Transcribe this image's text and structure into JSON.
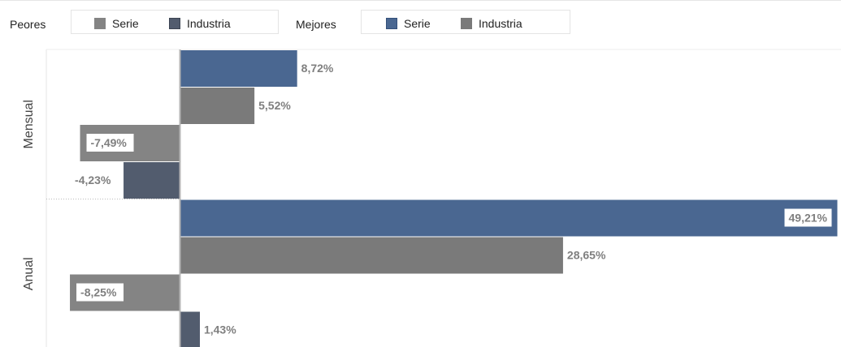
{
  "legend": {
    "worst": {
      "title": "Peores",
      "items": [
        {
          "label": "Serie",
          "color": "#848484"
        },
        {
          "label": "Industria",
          "color": "#525c6e"
        }
      ]
    },
    "best": {
      "title": "Mejores",
      "items": [
        {
          "label": "Serie",
          "color": "#4a6791"
        },
        {
          "label": "Industria",
          "color": "#7a7a7a"
        }
      ]
    }
  },
  "chart_data": {
    "type": "bar",
    "orientation": "horizontal",
    "categories": [
      "Mensual",
      "Anual"
    ],
    "series": [
      {
        "name": "Mejores Serie",
        "values": [
          8.72,
          49.21
        ],
        "labels": [
          "8,72%",
          "49,21%"
        ],
        "color": "#4a6791"
      },
      {
        "name": "Mejores Industria",
        "values": [
          5.52,
          28.65
        ],
        "labels": [
          "5,52%",
          "28,65%"
        ],
        "color": "#7a7a7a"
      },
      {
        "name": "Peores Serie",
        "values": [
          -7.49,
          -8.25
        ],
        "labels": [
          "-7,49%",
          "-8,25%"
        ],
        "color": "#848484"
      },
      {
        "name": "Peores Industria",
        "values": [
          -4.23,
          1.43
        ],
        "labels": [
          "-4,23%",
          "1,43%"
        ],
        "color": "#525c6e"
      }
    ],
    "grid": false,
    "legend_position": "top"
  }
}
